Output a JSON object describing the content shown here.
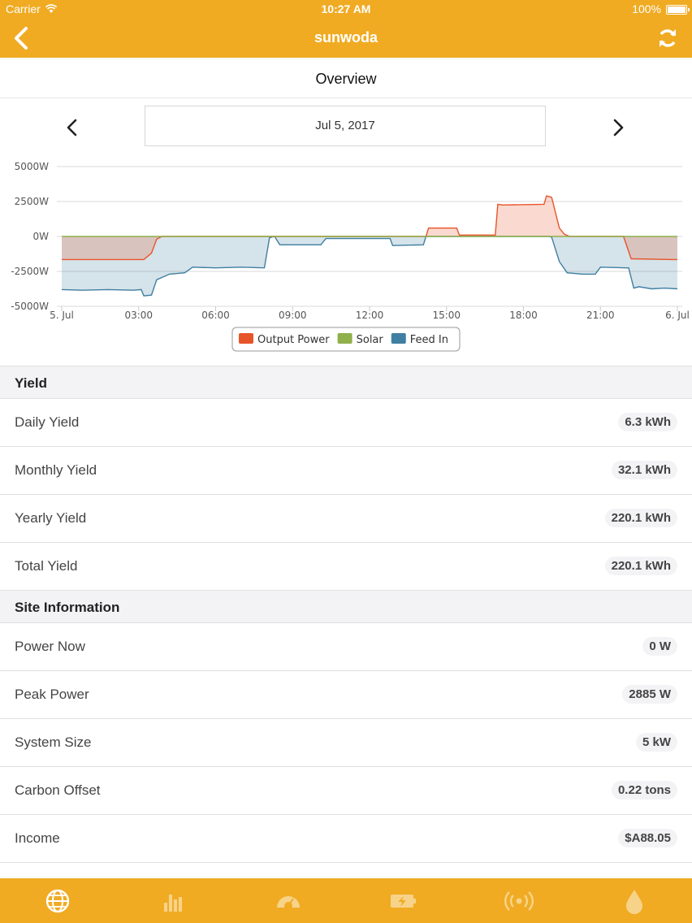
{
  "status_bar": {
    "carrier": "Carrier",
    "time": "10:27 AM",
    "battery": "100%"
  },
  "nav": {
    "title": "sunwoda",
    "back_icon": "chevron-left-icon",
    "refresh_icon": "refresh-icon"
  },
  "subheader": {
    "title": "Overview"
  },
  "date_nav": {
    "date": "Jul 5, 2017",
    "prev_icon": "chevron-left-icon",
    "next_icon": "chevron-right-icon"
  },
  "colors": {
    "accent": "#f0ab23",
    "output_power": "#e8542a",
    "solar": "#8fb04a",
    "feed_in": "#3f7fa1"
  },
  "chart_data": {
    "type": "area",
    "y_tick_labels": [
      "5000W",
      "2500W",
      "0W",
      "-2500W",
      "-5000W"
    ],
    "y_ticks": [
      5000,
      2500,
      0,
      -2500,
      -5000
    ],
    "ylim": [
      -5000,
      5000
    ],
    "x_tick_labels": [
      "5. Jul",
      "03:00",
      "06:00",
      "09:00",
      "12:00",
      "15:00",
      "18:00",
      "21:00",
      "6. Jul"
    ],
    "x_ticks": [
      0,
      3,
      6,
      9,
      12,
      15,
      18,
      21,
      24
    ],
    "xlim": [
      0,
      24
    ],
    "grid": true,
    "legend_position": "bottom-center",
    "series": [
      {
        "name": "Output Power",
        "color": "#e8542a",
        "points": [
          [
            0.0,
            -1650
          ],
          [
            3.2,
            -1650
          ],
          [
            3.5,
            -1200
          ],
          [
            3.7,
            -200
          ],
          [
            3.9,
            0
          ],
          [
            14.2,
            0
          ],
          [
            14.3,
            600
          ],
          [
            15.4,
            600
          ],
          [
            15.5,
            100
          ],
          [
            16.9,
            100
          ],
          [
            17.0,
            2300
          ],
          [
            17.2,
            2250
          ],
          [
            18.8,
            2300
          ],
          [
            18.9,
            2900
          ],
          [
            19.1,
            2800
          ],
          [
            19.4,
            600
          ],
          [
            19.6,
            150
          ],
          [
            19.8,
            0
          ],
          [
            21.9,
            0
          ],
          [
            22.2,
            -1600
          ],
          [
            23.8,
            -1650
          ],
          [
            24.0,
            -1650
          ]
        ]
      },
      {
        "name": "Solar",
        "color": "#8fb04a",
        "points": [
          [
            0.0,
            0
          ],
          [
            24.0,
            0
          ]
        ]
      },
      {
        "name": "Feed In",
        "color": "#3f7fa1",
        "points": [
          [
            0.0,
            -3800
          ],
          [
            0.8,
            -3850
          ],
          [
            1.8,
            -3800
          ],
          [
            2.8,
            -3850
          ],
          [
            3.1,
            -3800
          ],
          [
            3.2,
            -4250
          ],
          [
            3.5,
            -4200
          ],
          [
            3.7,
            -3100
          ],
          [
            4.2,
            -2700
          ],
          [
            4.8,
            -2600
          ],
          [
            5.1,
            -2200
          ],
          [
            6.0,
            -2250
          ],
          [
            7.0,
            -2200
          ],
          [
            7.9,
            -2250
          ],
          [
            8.1,
            -100
          ],
          [
            8.3,
            0
          ],
          [
            8.5,
            -600
          ],
          [
            10.1,
            -600
          ],
          [
            10.3,
            -150
          ],
          [
            12.8,
            -150
          ],
          [
            12.9,
            -650
          ],
          [
            14.1,
            -600
          ],
          [
            14.2,
            0
          ],
          [
            19.0,
            0
          ],
          [
            19.1,
            -50
          ],
          [
            19.4,
            -1800
          ],
          [
            19.7,
            -2600
          ],
          [
            20.3,
            -2700
          ],
          [
            20.8,
            -2700
          ],
          [
            21.0,
            -2200
          ],
          [
            22.0,
            -2250
          ],
          [
            22.1,
            -2250
          ],
          [
            22.3,
            -3700
          ],
          [
            22.5,
            -3600
          ],
          [
            23.0,
            -3750
          ],
          [
            23.5,
            -3700
          ],
          [
            24.0,
            -3750
          ]
        ]
      }
    ]
  },
  "yield": {
    "header": "Yield",
    "rows": [
      {
        "label": "Daily Yield",
        "value": "6.3 kWh"
      },
      {
        "label": "Monthly Yield",
        "value": "32.1 kWh"
      },
      {
        "label": "Yearly Yield",
        "value": "220.1 kWh"
      },
      {
        "label": "Total Yield",
        "value": "220.1 kWh"
      }
    ]
  },
  "site": {
    "header": "Site Information",
    "rows": [
      {
        "label": "Power Now",
        "value": "0 W"
      },
      {
        "label": "Peak Power",
        "value": "2885 W"
      },
      {
        "label": "System Size",
        "value": "5 kW"
      },
      {
        "label": "Carbon Offset",
        "value": "0.22 tons"
      },
      {
        "label": "Income",
        "value": "$A88.05"
      }
    ]
  },
  "tab_bar": {
    "icons": [
      "globe-icon",
      "bar-chart-icon",
      "gauge-icon",
      "battery-charging-icon",
      "signal-broadcast-icon",
      "water-drop-icon"
    ]
  }
}
